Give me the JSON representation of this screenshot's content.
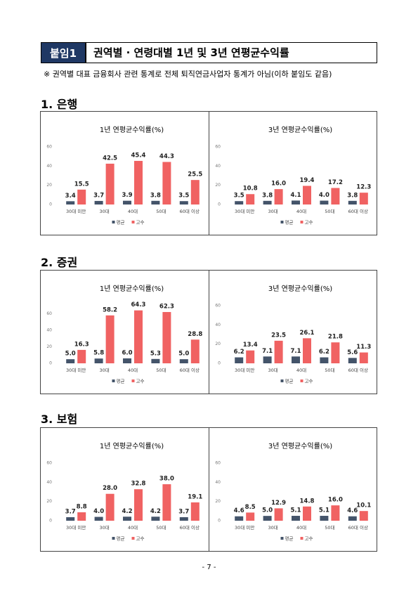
{
  "header": {
    "tag": "붙임1",
    "title": "권역별 · 연령대별 1년 및 3년 연평균수익률"
  },
  "note": "※ 권역별 대표 금융회사 관련 통계로 전체 퇴직연금사업자 통계가 아님(이하 붙임도 같음)",
  "sections": [
    {
      "heading": "1. 은행",
      "charts": [
        {
          "type": "bar",
          "title": "1년 연평균수익률(%)",
          "categories": [
            "30대 미만",
            "30대",
            "40대",
            "50대",
            "60대 이상"
          ],
          "ylim": [
            0,
            60
          ],
          "yticks": [
            0,
            20,
            40,
            60
          ],
          "series": [
            {
              "name": "평균",
              "color": "#44546a",
              "values": [
                3.4,
                3.7,
                3.9,
                3.8,
                3.5
              ],
              "value_labels": [
                "3.4",
                "3.7",
                "3.9",
                "3.8",
                "3.5"
              ]
            },
            {
              "name": "고수",
              "color": "#f06262",
              "values": [
                15.5,
                42.5,
                45.4,
                44.3,
                25.5
              ],
              "value_labels": [
                "15.5",
                "42.5",
                "45.4",
                "44.3",
                "25.5"
              ]
            }
          ]
        },
        {
          "type": "bar",
          "title": "3년 연평균수익률(%)",
          "categories": [
            "30대 미만",
            "30대",
            "40대",
            "50대",
            "60대 이상"
          ],
          "ylim": [
            0,
            60
          ],
          "yticks": [
            0,
            20,
            40,
            60
          ],
          "series": [
            {
              "name": "평균",
              "color": "#44546a",
              "values": [
                3.5,
                3.8,
                4.1,
                4.0,
                3.8
              ],
              "value_labels": [
                "3.5",
                "3.8",
                "4.1",
                "4.0",
                "3.8"
              ]
            },
            {
              "name": "고수",
              "color": "#f06262",
              "values": [
                10.8,
                16.0,
                19.4,
                17.2,
                12.3
              ],
              "value_labels": [
                "10.8",
                "16.0",
                "19.4",
                "17.2",
                "12.3"
              ]
            }
          ]
        }
      ]
    },
    {
      "heading": "2. 증권",
      "charts": [
        {
          "type": "bar",
          "title": "1년 연평균수익률(%)",
          "categories": [
            "30대 미만",
            "30대",
            "40대",
            "50대",
            "60대 이상"
          ],
          "ylim": [
            0,
            70
          ],
          "yticks": [
            0,
            20,
            40,
            60
          ],
          "series": [
            {
              "name": "평균",
              "color": "#44546a",
              "values": [
                5.0,
                5.8,
                6.0,
                5.3,
                5.0
              ],
              "value_labels": [
                "5.0",
                "5.8",
                "6.0",
                "5.3",
                "5.0"
              ]
            },
            {
              "name": "고수",
              "color": "#f06262",
              "values": [
                16.3,
                58.2,
                64.3,
                62.3,
                28.8
              ],
              "value_labels": [
                "16.3",
                "58.2",
                "64.3",
                "62.3",
                "28.8"
              ]
            }
          ]
        },
        {
          "type": "bar",
          "title": "3년 연평균수익률(%)",
          "categories": [
            "30대 미만",
            "30대",
            "40대",
            "50대",
            "60대 이상"
          ],
          "ylim": [
            0,
            60
          ],
          "yticks": [
            0,
            20,
            40,
            60
          ],
          "series": [
            {
              "name": "평균",
              "color": "#44546a",
              "values": [
                6.2,
                7.1,
                7.1,
                6.2,
                5.6
              ],
              "value_labels": [
                "6.2",
                "7.1",
                "7.1",
                "6.2",
                "5.6"
              ]
            },
            {
              "name": "고수",
              "color": "#f06262",
              "values": [
                13.4,
                23.5,
                26.1,
                21.8,
                11.3
              ],
              "value_labels": [
                "13.4",
                "23.5",
                "26.1",
                "21.8",
                "11.3"
              ]
            }
          ]
        }
      ]
    },
    {
      "heading": "3. 보험",
      "charts": [
        {
          "type": "bar",
          "title": "1년 연평균수익률(%)",
          "categories": [
            "30대 미만",
            "30대",
            "40대",
            "50대",
            "60대 이상"
          ],
          "ylim": [
            0,
            60
          ],
          "yticks": [
            0,
            20,
            40,
            60
          ],
          "series": [
            {
              "name": "평균",
              "color": "#44546a",
              "values": [
                3.7,
                4.0,
                4.2,
                4.2,
                3.7
              ],
              "value_labels": [
                "3.7",
                "4.0",
                "4.2",
                "4.2",
                "3.7"
              ]
            },
            {
              "name": "고수",
              "color": "#f06262",
              "values": [
                8.8,
                28.0,
                32.8,
                38.0,
                19.1
              ],
              "value_labels": [
                "8.8",
                "28.0",
                "32.8",
                "38.0",
                "19.1"
              ]
            }
          ]
        },
        {
          "type": "bar",
          "title": "3년 연평균수익률(%)",
          "categories": [
            "30대 미만",
            "30대",
            "40대",
            "50대",
            "60대 이상"
          ],
          "ylim": [
            0,
            60
          ],
          "yticks": [
            0,
            20,
            40,
            60
          ],
          "series": [
            {
              "name": "평균",
              "color": "#44546a",
              "values": [
                4.6,
                5.0,
                5.1,
                5.1,
                4.6
              ],
              "value_labels": [
                "4.6",
                "5.0",
                "5.1",
                "5.1",
                "4.6"
              ]
            },
            {
              "name": "고수",
              "color": "#f06262",
              "values": [
                8.5,
                12.9,
                14.8,
                16.0,
                10.1
              ],
              "value_labels": [
                "8.5",
                "12.9",
                "14.8",
                "16.0",
                "10.1"
              ]
            }
          ]
        }
      ]
    }
  ],
  "page_number": "- 7 -"
}
